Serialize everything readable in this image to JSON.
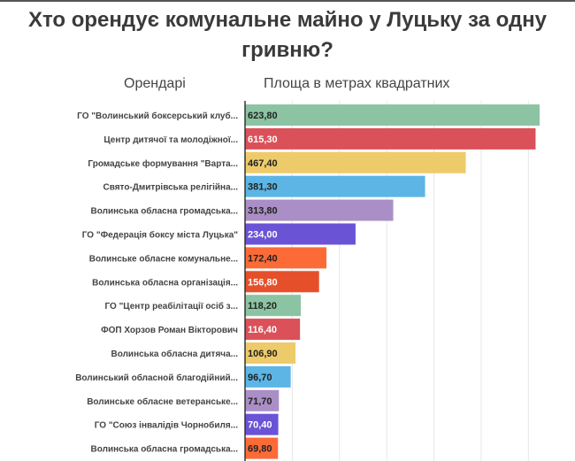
{
  "chart_data": {
    "type": "bar",
    "orientation": "horizontal",
    "title": "Хто орендує комунальне майно у Луцьку за одну гривню?",
    "category_header": "Орендарі",
    "value_header": "Площа в метрах квадратних",
    "xlim": [
      0,
      640
    ],
    "grid": true,
    "grid_step": 100,
    "categories": [
      "ГО \"Волинський боксерський клуб...",
      "Центр дитячої та молодіжної...",
      "Громадське формування \"Варта...",
      "Свято-Дмитрівська релігійна...",
      "Волинська обласна громадська...",
      "ГО \"Федерація боксу міста Луцька\"",
      "Волинське обласне комунальне...",
      "Волинська обласна організація...",
      "ГО \"Центр реабілітації осіб з...",
      "ФОП Хорзов Роман Вікторович",
      "Волинська обласна дитяча...",
      "Волинський обласной благодійний...",
      "Волинське обласне ветеранське...",
      "ГО \"Союз інвалідів Чорнобиля...",
      "Волинська обласна громадська..."
    ],
    "values": [
      623.8,
      615.3,
      467.4,
      381.3,
      313.8,
      234.0,
      172.4,
      156.8,
      118.2,
      116.4,
      106.9,
      96.7,
      71.7,
      70.4,
      69.8
    ],
    "value_labels": [
      "623,80",
      "615,30",
      "467,40",
      "381,30",
      "313,80",
      "234,00",
      "172,40",
      "156,80",
      "118,20",
      "116,40",
      "106,90",
      "96,70",
      "71,70",
      "70,40",
      "69,80"
    ],
    "colors": [
      "#8cc4a3",
      "#db5159",
      "#eecb6a",
      "#5cb5e5",
      "#a98fc5",
      "#6b53d6",
      "#fc6b37",
      "#e5502a",
      "#8cc4a3",
      "#db5159",
      "#eecb6a",
      "#5cb5e5",
      "#a98fc5",
      "#6b53d6",
      "#fc6b37"
    ],
    "label_colors": [
      "#222",
      "#fff",
      "#222",
      "#222",
      "#222",
      "#fff",
      "#222",
      "#fff",
      "#222",
      "#fff",
      "#222",
      "#222",
      "#222",
      "#fff",
      "#222"
    ]
  }
}
